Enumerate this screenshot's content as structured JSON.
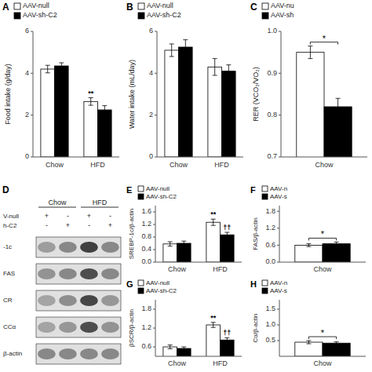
{
  "chart_data": [
    {
      "type": "bar",
      "title": "A",
      "ylabel": "Food intake (g/day)",
      "categories": [
        "Chow",
        "HFD"
      ],
      "series": [
        {
          "name": "AAV-null",
          "color": "white",
          "values": [
            4.2,
            2.65
          ],
          "errors": [
            0.18,
            0.18
          ]
        },
        {
          "name": "AAV-sh-C2",
          "color": "black",
          "values": [
            4.35,
            2.25
          ],
          "errors": [
            0.15,
            0.2
          ]
        }
      ],
      "ylim": [
        0,
        6
      ],
      "yticks": [
        0,
        2,
        4,
        6
      ],
      "legend": "upper left",
      "annotations": [
        {
          "text": "**",
          "category": 1,
          "series": 0
        }
      ]
    },
    {
      "type": "bar",
      "title": "B",
      "ylabel": "Water intake (mL/day)",
      "categories": [
        "Chow",
        "HFD"
      ],
      "series": [
        {
          "name": "AAV-null",
          "color": "white",
          "values": [
            5.1,
            4.3
          ],
          "errors": [
            0.3,
            0.4
          ]
        },
        {
          "name": "AAV-sh-C2",
          "color": "black",
          "values": [
            5.25,
            4.1
          ],
          "errors": [
            0.35,
            0.3
          ]
        }
      ],
      "ylim": [
        0,
        6
      ],
      "yticks": [
        0,
        2,
        4,
        6
      ],
      "legend": "upper left"
    },
    {
      "type": "bar",
      "title": "C",
      "ylabel": "RER (VCO₂/VO₂)",
      "categories": [
        "Chow"
      ],
      "series": [
        {
          "name": "AAV-nu",
          "color": "white",
          "values": [
            0.95
          ],
          "errors": [
            0.015
          ]
        },
        {
          "name": "AAV-sh",
          "color": "black",
          "values": [
            0.82
          ],
          "errors": [
            0.02
          ]
        }
      ],
      "ylim": [
        0.7,
        1.0
      ],
      "yticks": [
        0.7,
        0.8,
        0.9,
        {
          "value": 1.0,
          "label": "1.0"
        }
      ],
      "legend": "upper left",
      "annotations": [
        {
          "text": "*",
          "category": 0,
          "series": [
            0,
            1
          ]
        }
      ]
    },
    {
      "type": "blot",
      "title": "D",
      "column_groups": [
        "Chow",
        "HFD"
      ],
      "lane_labels": [
        {
          "name": "V-null",
          "values": [
            "+",
            "-",
            "+",
            "-"
          ]
        },
        {
          "name": "h-C2",
          "values": [
            "-",
            "+",
            "-",
            "+"
          ]
        }
      ],
      "rows": [
        "-1c",
        "FAS",
        "CR",
        "CCα",
        "β-actin"
      ],
      "cells": [
        [
          0.45,
          0.55,
          0.88,
          0.55
        ],
        [
          0.5,
          0.55,
          0.82,
          0.55
        ],
        [
          0.42,
          0.52,
          0.85,
          0.48
        ],
        [
          0.42,
          0.48,
          0.82,
          0.5
        ],
        [
          0.55,
          0.55,
          0.55,
          0.55
        ]
      ]
    },
    {
      "type": "bar",
      "title": "E",
      "ylabel": "SREBP-1c/β-actin",
      "categories": [
        "Chow",
        "HFD"
      ],
      "series": [
        {
          "name": "AAV-null",
          "color": "white",
          "values": [
            0.58,
            1.27
          ],
          "errors": [
            0.07,
            0.1
          ]
        },
        {
          "name": "AAV-sh-C2",
          "color": "black",
          "values": [
            0.6,
            0.87
          ],
          "errors": [
            0.07,
            0.08
          ]
        }
      ],
      "ylim": [
        0.0,
        1.8
      ],
      "yticks": [
        {
          "value": 0.0,
          "label": "0.0"
        },
        0.4,
        0.8,
        1.2,
        1.6
      ],
      "legend": "upper left",
      "annotations": [
        {
          "text": "**",
          "category": 1,
          "series": 0
        },
        {
          "text": "††",
          "category": 1,
          "series": 1
        }
      ]
    },
    {
      "type": "bar",
      "title": "F",
      "ylabel": "FAS/β-actin",
      "categories": [
        "Chow"
      ],
      "series": [
        {
          "name": "AAV-n",
          "color": "white",
          "values": [
            0.6
          ],
          "errors": [
            0.05
          ]
        },
        {
          "name": "AAV-s",
          "color": "black",
          "values": [
            0.65
          ],
          "errors": [
            0.06
          ]
        }
      ],
      "ylim": [
        0.0,
        2.0
      ],
      "yticks": [
        {
          "value": 0.0,
          "label": "0.0"
        },
        0.6,
        1.2,
        1.8
      ],
      "legend": "upper left",
      "annotations": [
        {
          "text": "*",
          "category": 0,
          "series": [
            0,
            1
          ]
        }
      ]
    },
    {
      "type": "bar",
      "title": "G",
      "ylabel": "βSCR/β-actin",
      "categories": [
        "Chow",
        "HFD"
      ],
      "series": [
        {
          "name": "AAV-null",
          "color": "white",
          "values": [
            0.6,
            1.3
          ],
          "errors": [
            0.06,
            0.08
          ]
        },
        {
          "name": "AAV-sh-C2",
          "color": "black",
          "values": [
            0.55,
            0.82
          ],
          "errors": [
            0.05,
            0.07
          ]
        }
      ],
      "ylim": [
        0.3,
        2.1
      ],
      "yticks": [
        0.6,
        1.2,
        1.8
      ],
      "legend": "upper left",
      "annotations": [
        {
          "text": "**",
          "category": 1,
          "series": 0
        },
        {
          "text": "††",
          "category": 1,
          "series": 1
        }
      ]
    },
    {
      "type": "bar",
      "title": "H",
      "ylabel": "Cα/β-actin",
      "categories": [
        "Chow"
      ],
      "series": [
        {
          "name": "AAV-n",
          "color": "white",
          "values": [
            0.45
          ],
          "errors": [
            0.05
          ]
        },
        {
          "name": "AAV-s",
          "color": "black",
          "values": [
            0.42
          ],
          "errors": [
            0.04
          ]
        }
      ],
      "ylim": [
        0.0,
        1.8
      ],
      "yticks": [
        0.5,
        {
          "value": 1.0,
          "label": "1.0"
        },
        1.5
      ],
      "legend": "upper left",
      "annotations": [
        {
          "text": "*",
          "category": 0,
          "series": [
            0,
            1
          ]
        }
      ]
    }
  ]
}
